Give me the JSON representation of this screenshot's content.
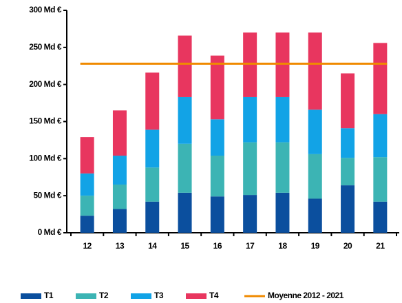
{
  "chart_data": {
    "type": "bar",
    "stacked": true,
    "categories": [
      "12",
      "13",
      "14",
      "15",
      "16",
      "17",
      "18",
      "19",
      "20",
      "21"
    ],
    "series": [
      {
        "name": "T1",
        "color": "#0b4f9e",
        "values": [
          23,
          32,
          42,
          54,
          49,
          51,
          54,
          46,
          64,
          42
        ]
      },
      {
        "name": "T2",
        "color": "#3cb4b4",
        "values": [
          27,
          33,
          46,
          66,
          55,
          71,
          68,
          60,
          37,
          60
        ]
      },
      {
        "name": "T3",
        "color": "#12a3e6",
        "values": [
          30,
          39,
          51,
          63,
          49,
          61,
          61,
          60,
          40,
          58
        ]
      },
      {
        "name": "T4",
        "color": "#e8365f",
        "values": [
          49,
          61,
          77,
          83,
          86,
          87,
          87,
          104,
          74,
          96
        ]
      },
      {
        "name": "Moyenne 2012 - 2021",
        "color": "#f08a00",
        "type": "line",
        "values": [
          228,
          228,
          228,
          228,
          228,
          228,
          228,
          228,
          228,
          228
        ]
      }
    ],
    "ylim": [
      0,
      300
    ],
    "yticks": [
      {
        "value": 0,
        "label": "0 Md €"
      },
      {
        "value": 50,
        "label": "50 Md €"
      },
      {
        "value": 100,
        "label": "100 Md €"
      },
      {
        "value": 150,
        "label": "150 Md €"
      },
      {
        "value": 200,
        "label": "200 Md €"
      },
      {
        "value": 250,
        "label": "250 Md €"
      },
      {
        "value": 300,
        "label": "300 Md €"
      }
    ],
    "legend": "bottom"
  }
}
